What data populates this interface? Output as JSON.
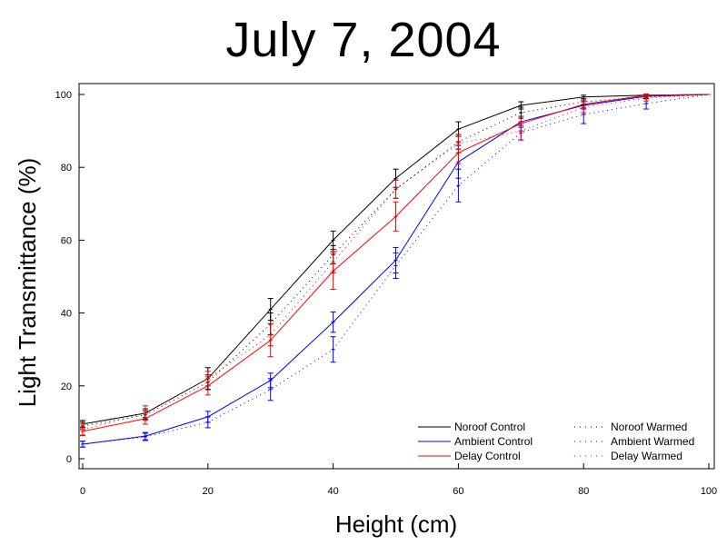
{
  "chart_data": {
    "type": "line",
    "title": "July 7, 2004",
    "xlabel": "Height (cm)",
    "ylabel": "Light Transmittance (%)",
    "xlim": [
      0,
      100
    ],
    "ylim": [
      0,
      100
    ],
    "xticks": [
      0,
      20,
      40,
      60,
      80,
      100
    ],
    "yticks": [
      0,
      20,
      40,
      60,
      80,
      100
    ],
    "grid": false,
    "legend_position": "bottom-right",
    "series": [
      {
        "name": "Noroof Control",
        "color": "#000000",
        "style": "solid",
        "x": [
          0,
          10,
          20,
          30,
          40,
          50,
          60,
          70,
          80,
          90,
          100
        ],
        "y": [
          9.5,
          12.5,
          22,
          41,
          60,
          77,
          90.5,
          97,
          99.3,
          99.8,
          100
        ],
        "err": [
          1.0,
          1.2,
          3.0,
          3.0,
          2.5,
          2.5,
          2.0,
          1.0,
          0.5,
          0.3,
          0
        ]
      },
      {
        "name": "Ambient Control",
        "color": "#0000ff",
        "style": "solid",
        "x": [
          0,
          10,
          20,
          30,
          40,
          50,
          60,
          70,
          80,
          90,
          100
        ],
        "y": [
          4,
          6.2,
          11.5,
          21.5,
          37.5,
          54.5,
          81.5,
          92.5,
          97,
          99.5,
          100
        ],
        "err": [
          0.8,
          1.0,
          1.5,
          2.0,
          2.8,
          3.5,
          4.5,
          1.5,
          1.0,
          0.5,
          0
        ]
      },
      {
        "name": "Delay Control",
        "color": "#ff0000",
        "style": "solid",
        "x": [
          0,
          10,
          20,
          30,
          40,
          50,
          60,
          70,
          80,
          90,
          100
        ],
        "y": [
          7.5,
          11,
          20,
          32.5,
          51.5,
          66.5,
          84,
          92,
          97.3,
          99.8,
          100
        ],
        "err": [
          1.2,
          1.5,
          2.5,
          4.5,
          5.0,
          4.0,
          3.0,
          2.0,
          1.0,
          0.3,
          0
        ]
      },
      {
        "name": "Noroof Warmed",
        "color": "#000000",
        "style": "dotted",
        "x": [
          0,
          10,
          20,
          30,
          40,
          50,
          60,
          70,
          80,
          90,
          100
        ],
        "y": [
          9,
          12,
          21,
          37,
          56,
          74,
          87,
          95,
          98,
          99.3,
          100
        ],
        "err": [
          1.0,
          1.2,
          2.0,
          3.0,
          2.5,
          2.5,
          2.0,
          1.5,
          0.8,
          0.5,
          0
        ]
      },
      {
        "name": "Ambient Warmed",
        "color": "#0000ff",
        "style": "dotted",
        "x": [
          0,
          10,
          20,
          30,
          40,
          50,
          60,
          70,
          80,
          90,
          100
        ],
        "y": [
          4,
          6,
          10,
          19,
          30,
          53,
          75,
          89.5,
          94.5,
          97.5,
          100
        ],
        "err": [
          0.8,
          1.0,
          1.5,
          3.0,
          3.5,
          3.5,
          4.5,
          2.0,
          2.5,
          1.5,
          0
        ]
      },
      {
        "name": "Delay Warmed",
        "color": "#ff0000",
        "style": "dotted",
        "x": [
          0,
          10,
          20,
          30,
          40,
          50,
          60,
          70,
          80,
          90,
          100
        ],
        "y": [
          8,
          12.5,
          22,
          34,
          54,
          74,
          86.5,
          90,
          96.5,
          99,
          100
        ],
        "err": [
          1.5,
          2.0,
          2.0,
          3.0,
          3.0,
          2.5,
          2.5,
          2.5,
          1.5,
          0.8,
          0
        ]
      }
    ]
  }
}
